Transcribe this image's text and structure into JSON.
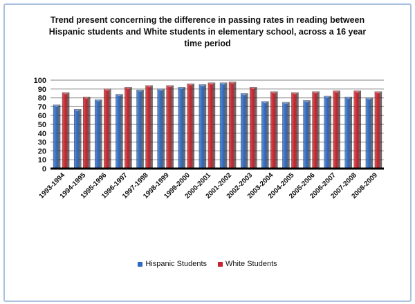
{
  "chart_data": {
    "type": "bar",
    "title": "Trend present concerning the difference in passing rates in reading between Hispanic students and White students in elementary school, across a 16 year time period",
    "categories": [
      "1993-1994",
      "1994-1995",
      "1995-1996",
      "1996-1997",
      "1997-1998",
      "1998-1999",
      "1999-2000",
      "2000-2001",
      "2001-2002",
      "2002-2003",
      "2003-2004",
      "2004-2005",
      "2005-2006",
      "2006-2007",
      "2007-2008",
      "2008-2009"
    ],
    "series": [
      {
        "name": "Hispanic Students",
        "color": "#2f6bc4",
        "values": [
          72,
          67,
          78,
          84,
          89,
          90,
          92,
          95,
          97,
          85,
          76,
          75,
          77,
          82,
          81,
          80
        ]
      },
      {
        "name": "White Students",
        "color": "#c8232c",
        "values": [
          86,
          81,
          90,
          92,
          94,
          94,
          96,
          97,
          98,
          92,
          87,
          86,
          87,
          88,
          88,
          87
        ]
      }
    ],
    "ylim": [
      0,
      100
    ],
    "yticks": [
      0,
      10,
      20,
      30,
      40,
      50,
      60,
      70,
      80,
      90,
      100
    ],
    "grid": true,
    "legend": "bottom",
    "xlabel": "",
    "ylabel": ""
  }
}
